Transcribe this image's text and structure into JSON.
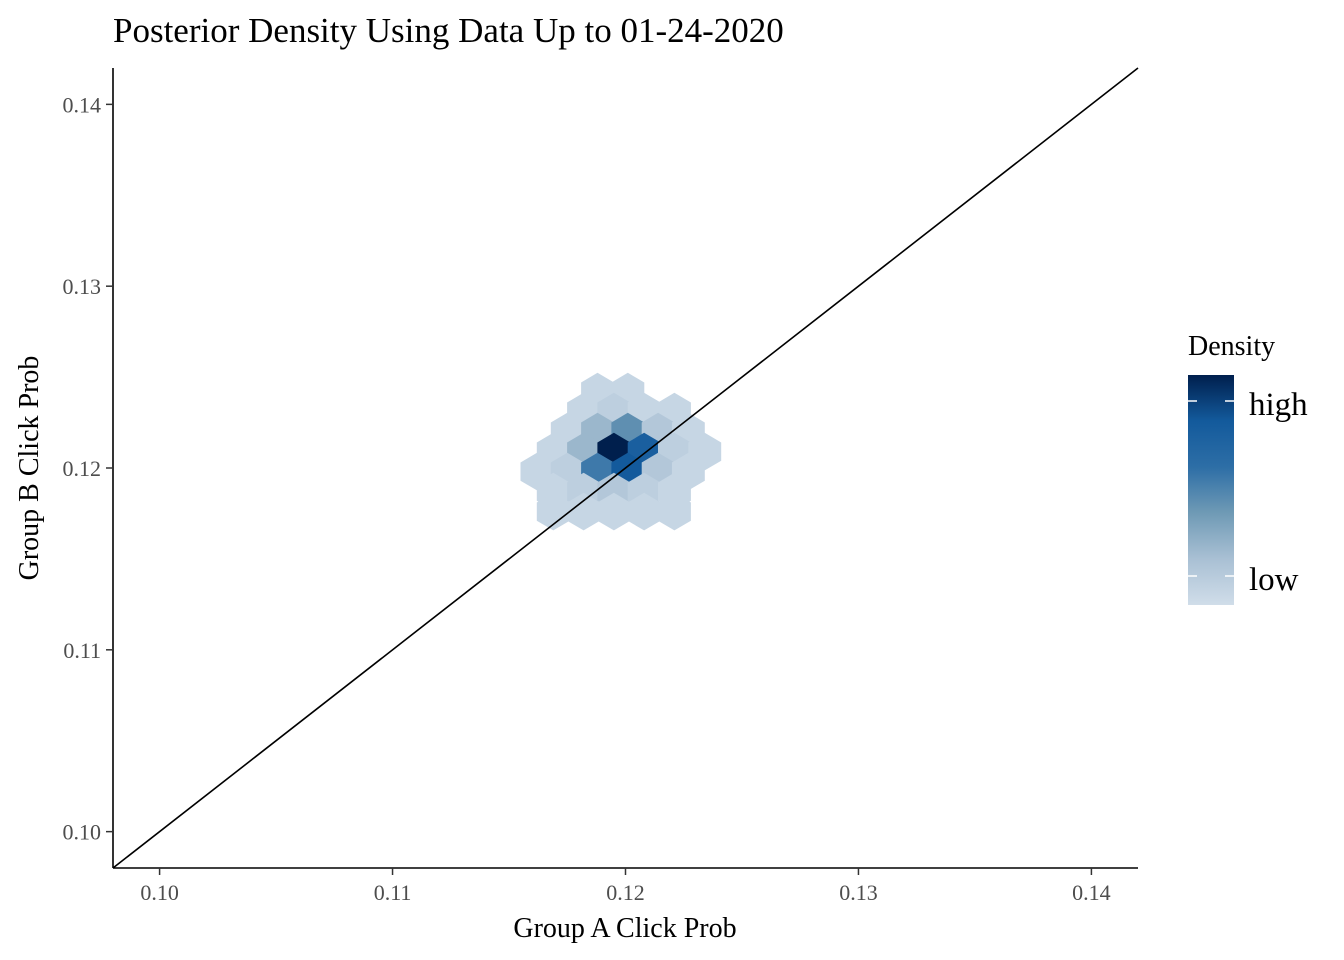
{
  "chart_data": {
    "type": "hexbin",
    "title": "Posterior Density Using Data Up to 01-24-2020",
    "xlabel": "Group A Click Prob",
    "ylabel": "Group B Click Prob",
    "xlim": [
      0.098,
      0.142
    ],
    "ylim": [
      0.098,
      0.142
    ],
    "x_ticks": [
      "0.10",
      "0.11",
      "0.12",
      "0.13",
      "0.14"
    ],
    "y_ticks": [
      "0.10",
      "0.11",
      "0.12",
      "0.13",
      "0.14"
    ],
    "grid": false,
    "reference_line": {
      "type": "y = x"
    },
    "legend": {
      "title": "Density",
      "position": "right",
      "labels": {
        "high": "high",
        "low": "low"
      },
      "colors": [
        "#d0dde9",
        "#a9c0d4",
        "#6f9ab5",
        "#2d6ea6",
        "#135a9c",
        "#001f4d"
      ]
    },
    "bins": [
      {
        "x": 0.1188,
        "y": 0.1242,
        "density": 0.05
      },
      {
        "x": 0.1201,
        "y": 0.1242,
        "density": 0.05
      },
      {
        "x": 0.1182,
        "y": 0.1231,
        "density": 0.05
      },
      {
        "x": 0.1195,
        "y": 0.1231,
        "density": 0.1
      },
      {
        "x": 0.1208,
        "y": 0.1231,
        "density": 0.05
      },
      {
        "x": 0.1221,
        "y": 0.1231,
        "density": 0.05
      },
      {
        "x": 0.1175,
        "y": 0.122,
        "density": 0.05
      },
      {
        "x": 0.1188,
        "y": 0.122,
        "density": 0.25
      },
      {
        "x": 0.1201,
        "y": 0.122,
        "density": 0.45
      },
      {
        "x": 0.1214,
        "y": 0.122,
        "density": 0.15
      },
      {
        "x": 0.1227,
        "y": 0.122,
        "density": 0.05
      },
      {
        "x": 0.1169,
        "y": 0.1209,
        "density": 0.05
      },
      {
        "x": 0.1182,
        "y": 0.1209,
        "density": 0.25
      },
      {
        "x": 0.1195,
        "y": 0.1209,
        "density": 1.0
      },
      {
        "x": 0.1208,
        "y": 0.1209,
        "density": 0.75
      },
      {
        "x": 0.1221,
        "y": 0.1209,
        "density": 0.1
      },
      {
        "x": 0.1234,
        "y": 0.1209,
        "density": 0.05
      },
      {
        "x": 0.1162,
        "y": 0.1198,
        "density": 0.05
      },
      {
        "x": 0.1175,
        "y": 0.1198,
        "density": 0.1
      },
      {
        "x": 0.1188,
        "y": 0.1198,
        "density": 0.55
      },
      {
        "x": 0.1201,
        "y": 0.1198,
        "density": 0.8
      },
      {
        "x": 0.1214,
        "y": 0.1198,
        "density": 0.15
      },
      {
        "x": 0.1227,
        "y": 0.1198,
        "density": 0.05
      },
      {
        "x": 0.1169,
        "y": 0.1187,
        "density": 0.05
      },
      {
        "x": 0.1182,
        "y": 0.1187,
        "density": 0.1
      },
      {
        "x": 0.1195,
        "y": 0.1187,
        "density": 0.15
      },
      {
        "x": 0.1208,
        "y": 0.1187,
        "density": 0.1
      },
      {
        "x": 0.1221,
        "y": 0.1187,
        "density": 0.05
      },
      {
        "x": 0.1169,
        "y": 0.1176,
        "density": 0.05
      },
      {
        "x": 0.1182,
        "y": 0.1176,
        "density": 0.05
      },
      {
        "x": 0.1195,
        "y": 0.1176,
        "density": 0.05
      },
      {
        "x": 0.1208,
        "y": 0.1176,
        "density": 0.05
      },
      {
        "x": 0.1221,
        "y": 0.1176,
        "density": 0.05
      }
    ]
  }
}
